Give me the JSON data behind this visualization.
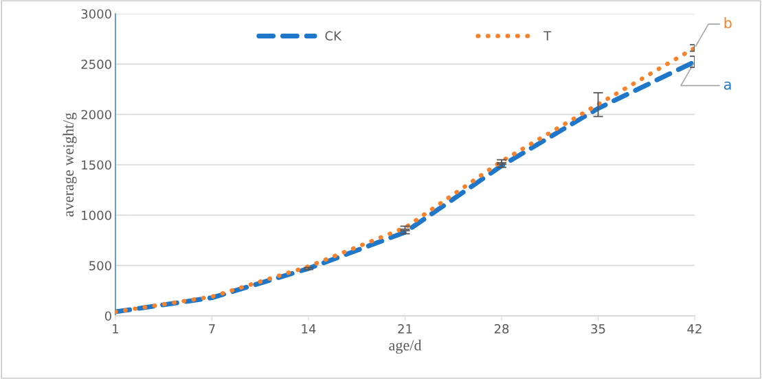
{
  "chart_data": {
    "type": "line",
    "xlabel": "age/d",
    "ylabel": "average weight/g",
    "categories": [
      "1",
      "7",
      "14",
      "21",
      "28",
      "35",
      "42"
    ],
    "series": [
      {
        "name": "CK",
        "color": "#1f77c9",
        "line_style": "dashed",
        "values": [
          40,
          180,
          470,
          830,
          1490,
          2060,
          2523
        ],
        "errors": [
          null,
          null,
          10,
          15,
          15,
          [
            1980,
            2215
          ],
          55
        ]
      },
      {
        "name": "T",
        "color": "#f7822c",
        "line_style": "dotted",
        "values": [
          40,
          190,
          490,
          875,
          1535,
          2100,
          2660
        ],
        "errors": [
          null,
          null,
          null,
          15,
          15,
          null,
          32
        ]
      }
    ],
    "ylim": [
      0,
      3000
    ],
    "yticks": [
      0,
      500,
      1000,
      1500,
      2000,
      2500,
      3000
    ],
    "grid": "y",
    "legend": "top",
    "annotations": [
      {
        "text": "b",
        "x": "42",
        "y": 2660
      },
      {
        "text": "a",
        "x": "42",
        "y": 2523
      }
    ]
  }
}
